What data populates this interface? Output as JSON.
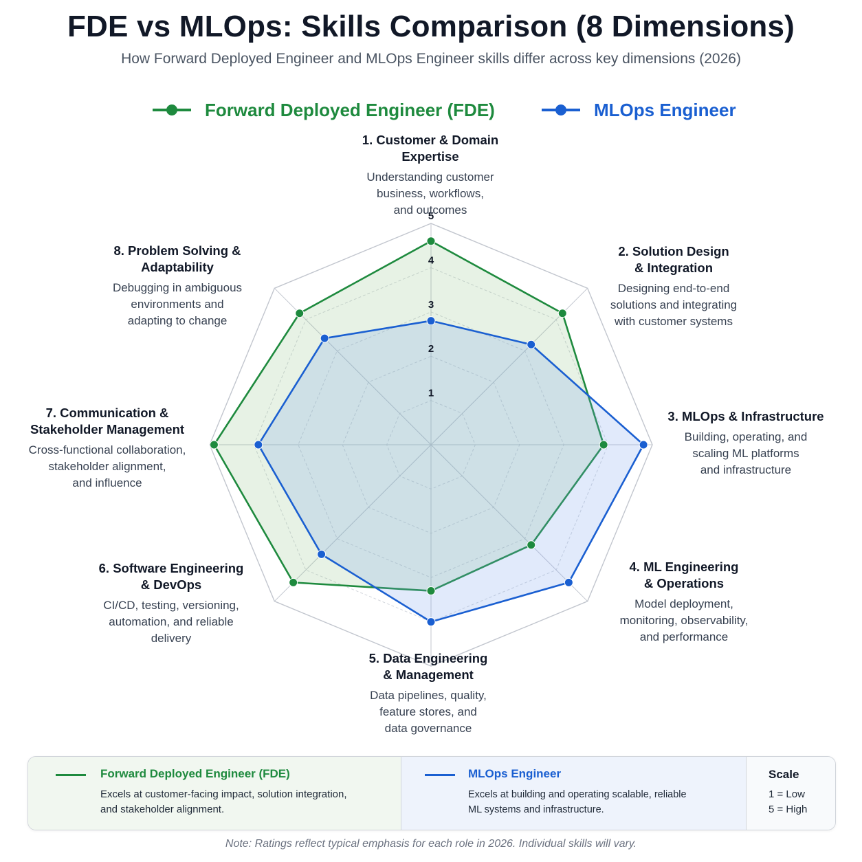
{
  "header": {
    "title": "FDE vs MLOps: Skills Comparison (8 Dimensions)",
    "subtitle": "How Forward Deployed Engineer and MLOps Engineer skills differ across key dimensions (2026)"
  },
  "chart_data": {
    "type": "radar",
    "title": "FDE vs MLOps: Skills Comparison (8 Dimensions)",
    "subtitle": "How Forward Deployed Engineer and MLOps Engineer skills differ across key dimensions (2026)",
    "rlim": [
      0,
      5
    ],
    "ticks": [
      "1",
      "2",
      "3",
      "4",
      "5"
    ],
    "legend_position": "top",
    "grid": true,
    "categories": [
      {
        "title": "1. Customer & Domain Expertise",
        "title_lines": [
          "1. Customer & Domain",
          "Expertise"
        ],
        "desc_lines": [
          "Understanding customer",
          "business, workflows,",
          "and outcomes"
        ]
      },
      {
        "title": "2. Solution Design & Integration",
        "title_lines": [
          "2. Solution Design",
          "& Integration"
        ],
        "desc_lines": [
          "Designing end-to-end",
          "solutions and integrating",
          "with customer systems"
        ]
      },
      {
        "title": "3. MLOps & Infrastructure",
        "title_lines": [
          "3. MLOps & Infrastructure"
        ],
        "desc_lines": [
          "Building, operating, and",
          "scaling ML platforms",
          "and infrastructure"
        ]
      },
      {
        "title": "4. ML Engineering & Operations",
        "title_lines": [
          "4. ML Engineering",
          "& Operations"
        ],
        "desc_lines": [
          "Model deployment,",
          "monitoring, observability,",
          "and performance"
        ]
      },
      {
        "title": "5. Data Engineering & Management",
        "title_lines": [
          "5. Data Engineering",
          "& Management"
        ],
        "desc_lines": [
          "Data pipelines, quality,",
          "feature stores, and",
          "data governance"
        ]
      },
      {
        "title": "6. Software Engineering & DevOps",
        "title_lines": [
          "6. Software Engineering",
          "& DevOps"
        ],
        "desc_lines": [
          "CI/CD, testing, versioning,",
          "automation, and reliable",
          "delivery"
        ]
      },
      {
        "title": "7. Communication & Stakeholder Management",
        "title_lines": [
          "7. Communication &",
          "Stakeholder Management"
        ],
        "desc_lines": [
          "Cross-functional collaboration,",
          "stakeholder alignment,",
          "and influence"
        ]
      },
      {
        "title": "8. Problem Solving & Adaptability",
        "title_lines": [
          "8. Problem Solving &",
          "Adaptability"
        ],
        "desc_lines": [
          "Debugging in ambiguous",
          "environments and",
          "adapting to change"
        ]
      }
    ],
    "series": [
      {
        "name": "Forward Deployed Engineer (FDE)",
        "color": "#1e8a3e",
        "fill": "rgba(120,185,110,0.18)",
        "values": [
          4.6,
          4.2,
          3.9,
          3.2,
          3.3,
          4.4,
          4.9,
          4.2
        ]
      },
      {
        "name": "MLOps Engineer",
        "color": "#1a5fd1",
        "fill": "rgba(120,160,235,0.22)",
        "values": [
          2.8,
          3.2,
          4.8,
          4.4,
          4.0,
          3.5,
          3.9,
          3.4
        ]
      }
    ]
  },
  "footer": {
    "fde": {
      "name": "Forward Deployed Engineer (FDE)",
      "desc_lines": [
        "Excels at customer-facing impact, solution integration,",
        "and stakeholder alignment."
      ]
    },
    "mlops": {
      "name": "MLOps Engineer",
      "desc_lines": [
        "Excels at building and operating scalable, reliable",
        "ML systems and infrastructure."
      ]
    },
    "scale": {
      "title": "Scale",
      "low": "1 = Low",
      "high": "5 = High"
    }
  },
  "note": "Note: Ratings reflect typical emphasis for each role in 2026. Individual skills will vary.",
  "colors": {
    "fde": "#1e8a3e",
    "mlops": "#1a5fd1",
    "grid": "#c9ccd3",
    "axis": "#b7bcc6"
  }
}
